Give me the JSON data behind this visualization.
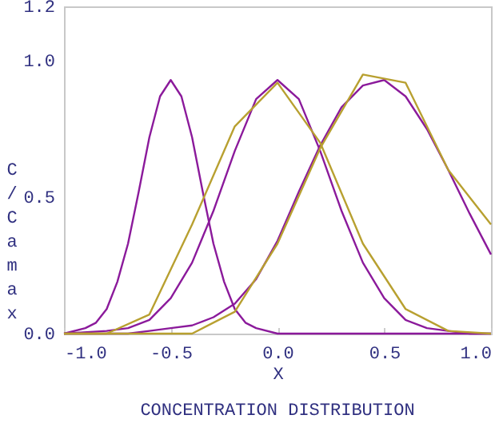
{
  "chart_data": {
    "type": "line",
    "title": "CONCENTRATION DISTRIBUTION",
    "xlabel": "X",
    "ylabel": "C/Camax",
    "xlim": [
      -1,
      1
    ],
    "ylim": [
      0,
      1.2
    ],
    "xticks": [
      {
        "value": -1,
        "label": "-1.0"
      },
      {
        "value": -0.5,
        "label": "-0.5"
      },
      {
        "value": 0,
        "label": "0.0"
      },
      {
        "value": 0.5,
        "label": "0.5"
      },
      {
        "value": 1,
        "label": "1.0"
      }
    ],
    "yticks": [
      {
        "value": 0,
        "label": "0.0"
      },
      {
        "value": 0.5,
        "label": "0.5"
      },
      {
        "value": 1,
        "label": "1.0"
      },
      {
        "value": 1.2,
        "label": "1.2"
      }
    ],
    "grid": false,
    "marker": "none",
    "line_style": "solid",
    "series": [
      {
        "color": "#8b1a9b",
        "x": [
          -1,
          -0.9,
          -0.85,
          -0.8,
          -0.75,
          -0.7,
          -0.65,
          -0.6,
          -0.55,
          -0.5,
          -0.45,
          -0.4,
          -0.35,
          -0.3,
          -0.25,
          -0.2,
          -0.15,
          -0.1,
          0,
          1
        ],
        "values": [
          0,
          0.02,
          0.04,
          0.09,
          0.19,
          0.33,
          0.52,
          0.72,
          0.87,
          0.93,
          0.87,
          0.72,
          0.52,
          0.33,
          0.19,
          0.09,
          0.04,
          0.02,
          0,
          0
        ]
      },
      {
        "color": "#8b1a9b",
        "x": [
          -1,
          -0.8,
          -0.7,
          -0.6,
          -0.5,
          -0.4,
          -0.3,
          -0.2,
          -0.1,
          0,
          0.1,
          0.2,
          0.3,
          0.4,
          0.5,
          0.6,
          0.7,
          0.8,
          0.9,
          1
        ],
        "values": [
          0,
          0.01,
          0.02,
          0.05,
          0.13,
          0.26,
          0.45,
          0.67,
          0.86,
          0.93,
          0.86,
          0.67,
          0.45,
          0.26,
          0.13,
          0.05,
          0.02,
          0.01,
          0,
          0
        ]
      },
      {
        "color": "#8b1a9b",
        "x": [
          -1,
          -0.7,
          -0.6,
          -0.5,
          -0.4,
          -0.3,
          -0.2,
          -0.1,
          0,
          0.1,
          0.2,
          0.3,
          0.4,
          0.5,
          0.6,
          0.7,
          0.8,
          0.9,
          1
        ],
        "values": [
          0,
          0,
          0.01,
          0.02,
          0.03,
          0.06,
          0.11,
          0.2,
          0.34,
          0.52,
          0.69,
          0.83,
          0.91,
          0.93,
          0.87,
          0.75,
          0.6,
          0.44,
          0.29
        ]
      },
      {
        "color": "#b8a030",
        "x": [
          -1,
          -0.8,
          -0.6,
          -0.4,
          -0.2,
          0,
          0.2,
          0.4,
          0.6,
          0.8,
          1
        ],
        "values": [
          0,
          0,
          0.07,
          0.4,
          0.76,
          0.92,
          0.7,
          0.33,
          0.09,
          0.01,
          0
        ]
      },
      {
        "color": "#b8a030",
        "x": [
          -1,
          -0.6,
          -0.4,
          -0.2,
          0,
          0.2,
          0.4,
          0.6,
          0.8,
          1
        ],
        "values": [
          0,
          0,
          0,
          0.08,
          0.33,
          0.68,
          0.95,
          0.92,
          0.6,
          0.4
        ]
      }
    ]
  }
}
